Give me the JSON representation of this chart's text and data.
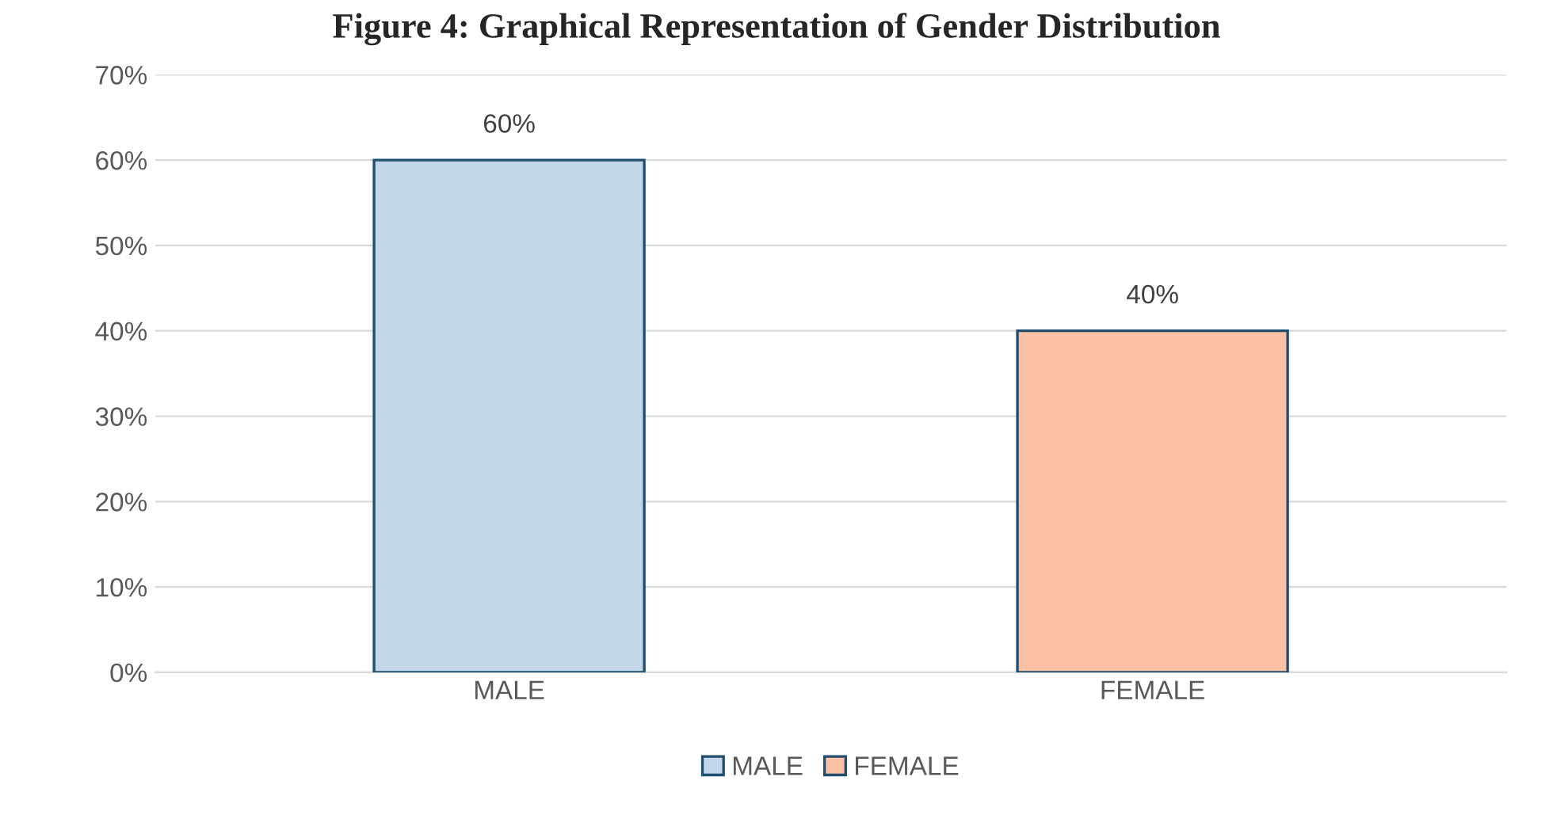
{
  "chart_data": {
    "type": "bar",
    "title": "Figure 4: Graphical Representation of Gender Distribution",
    "categories": [
      "MALE",
      "FEMALE"
    ],
    "series": [
      {
        "name": "MALE",
        "color": "#c3d5e8",
        "values": [
          60,
          null
        ],
        "value_labels": [
          "60%",
          null
        ]
      },
      {
        "name": "FEMALE",
        "color": "#fcc0a6",
        "values": [
          null,
          40
        ],
        "value_labels": [
          null,
          "40%"
        ]
      }
    ],
    "ylim": [
      0,
      70
    ],
    "yticks": [
      {
        "value": 0,
        "label": "0%"
      },
      {
        "value": 10,
        "label": "10%"
      },
      {
        "value": 20,
        "label": "20%"
      },
      {
        "value": 30,
        "label": "30%"
      },
      {
        "value": 40,
        "label": "40%"
      },
      {
        "value": 50,
        "label": "50%"
      },
      {
        "value": 60,
        "label": "60%"
      },
      {
        "value": 70,
        "label": "70%"
      }
    ],
    "grid": "y",
    "legend": "bottom"
  }
}
